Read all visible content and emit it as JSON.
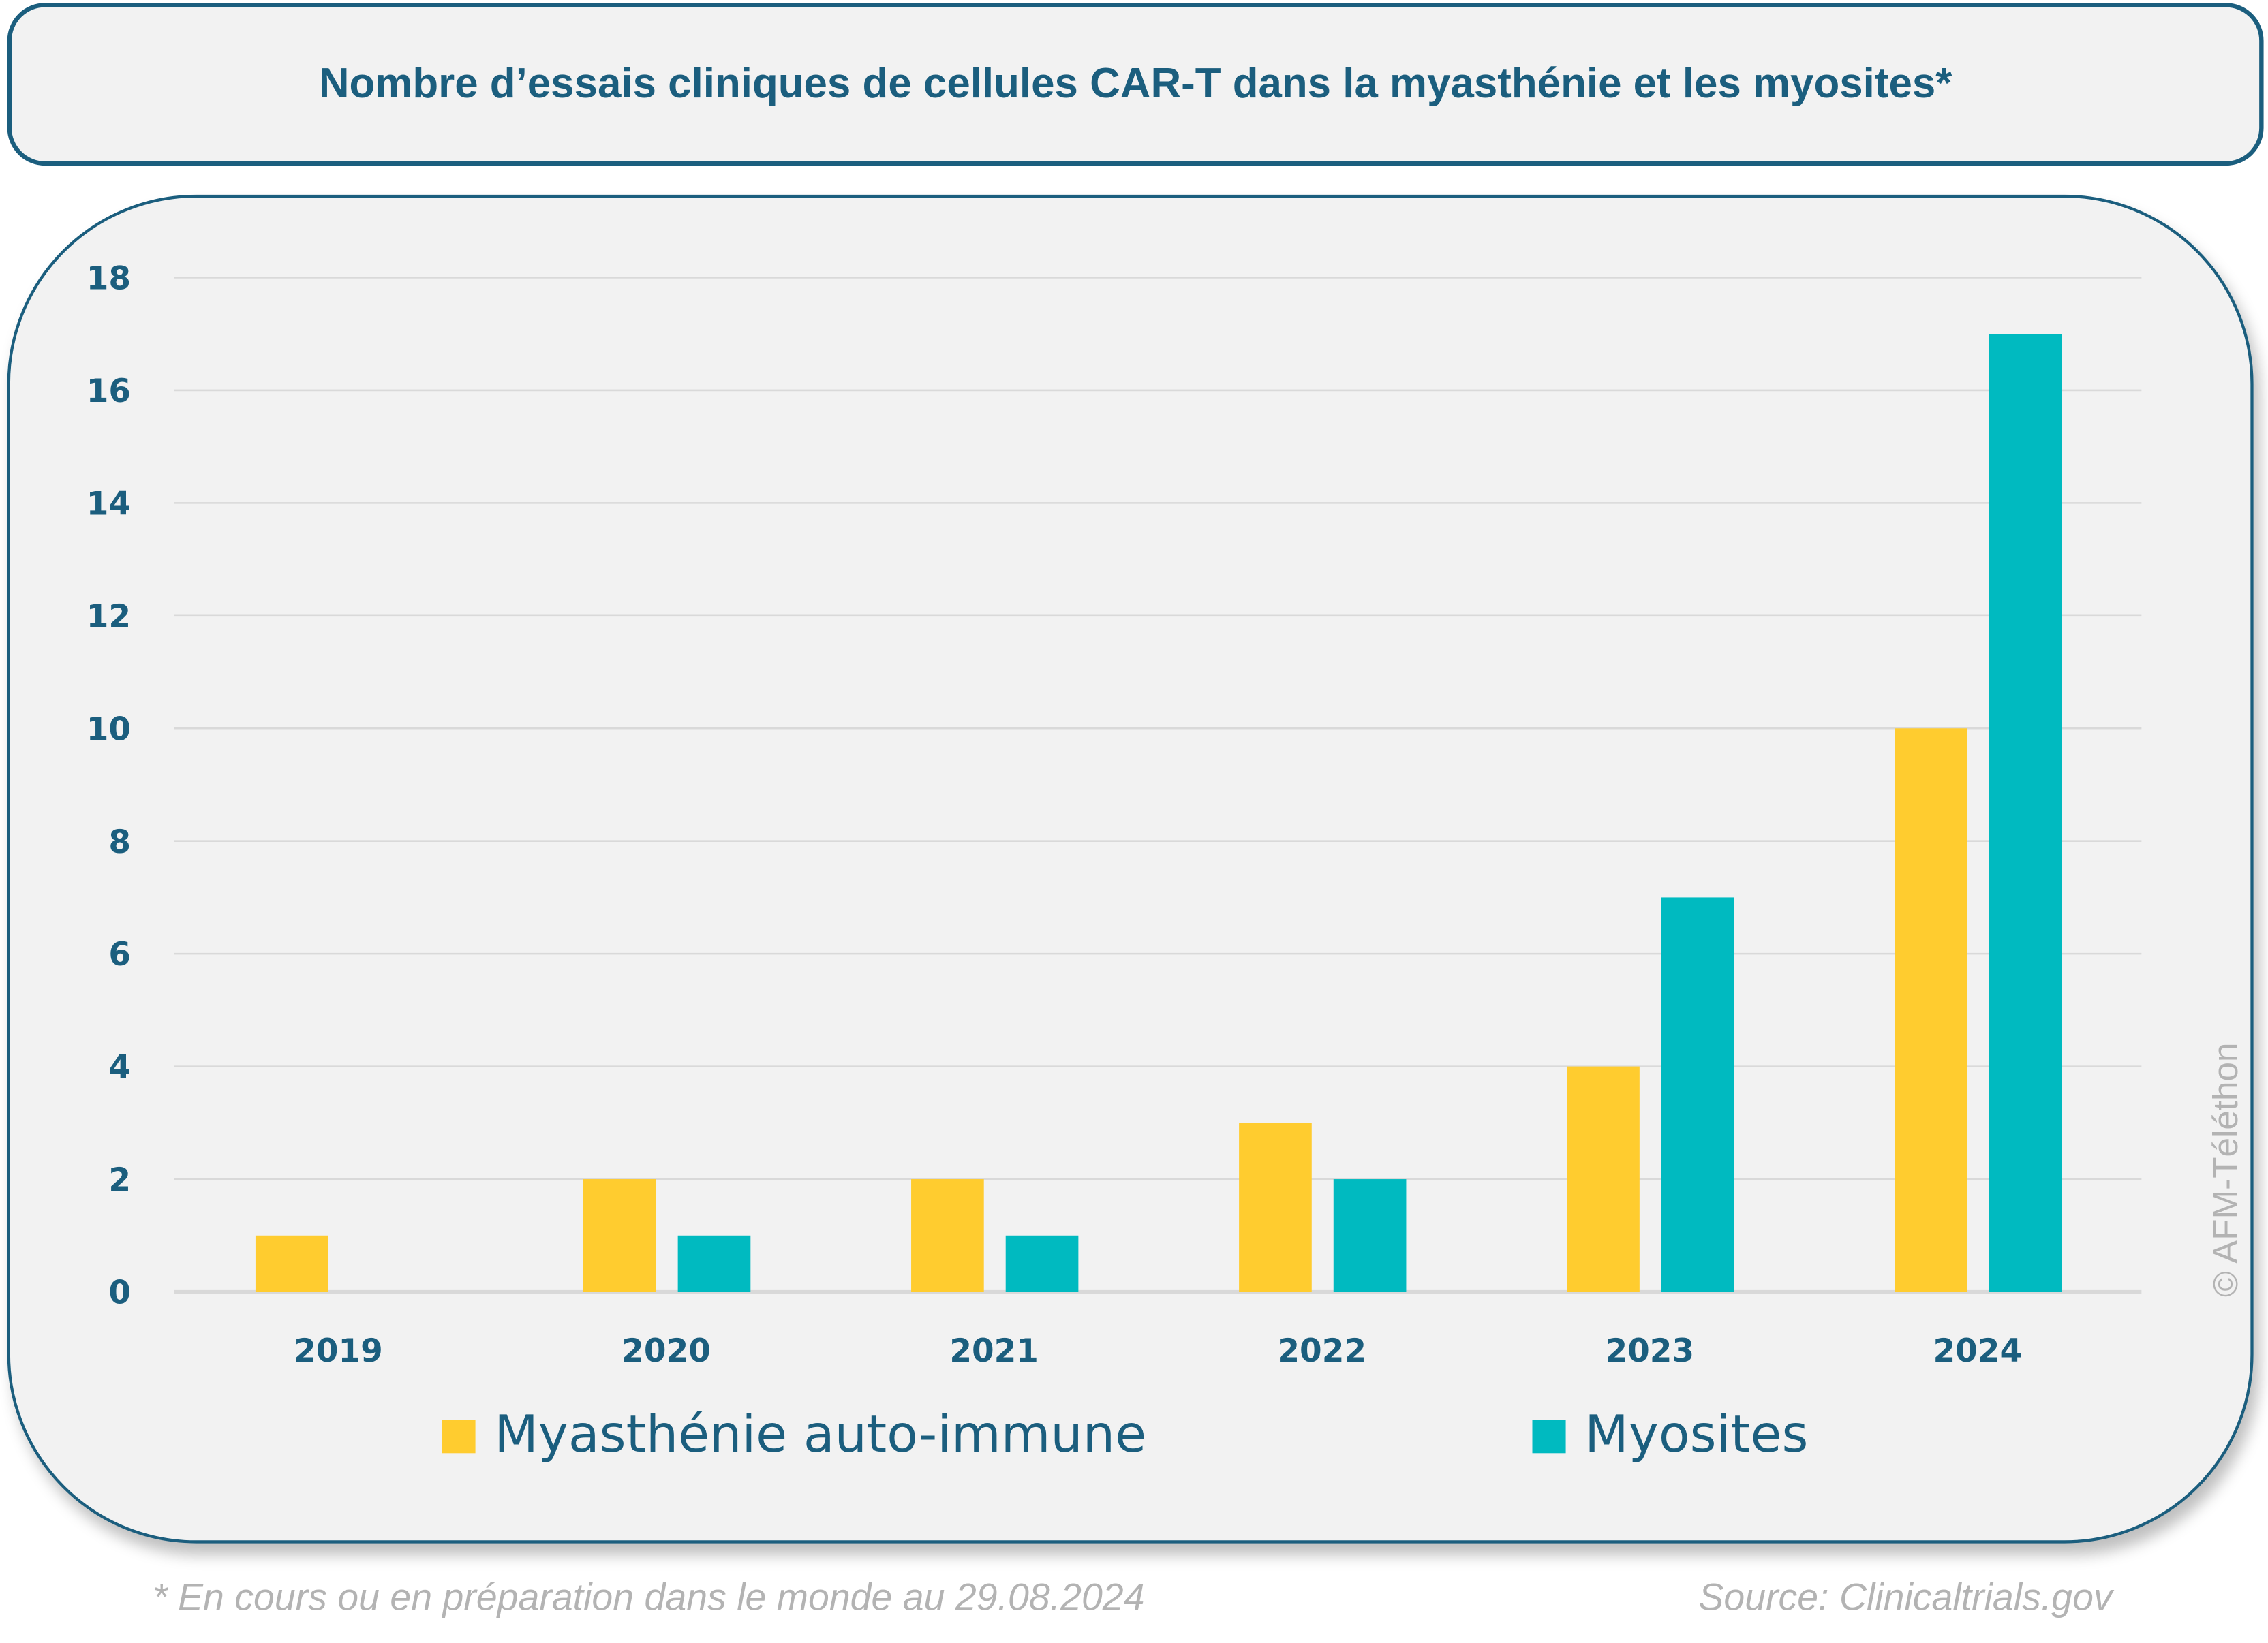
{
  "chart_data": {
    "type": "bar",
    "title": "Nombre d’essais cliniques de cellules CAR-T dans la myasthénie et les myosites*",
    "categories": [
      "2019",
      "2020",
      "2021",
      "2022",
      "2023",
      "2024"
    ],
    "series": [
      {
        "name": "Myasthénie auto-immune",
        "color": "#FFCC2F",
        "values": [
          1,
          2,
          2,
          3,
          4,
          10
        ]
      },
      {
        "name": "Myosites",
        "color": "#00BAC0",
        "values": [
          0,
          1,
          1,
          2,
          7,
          17
        ]
      }
    ],
    "ylim": [
      0,
      18
    ],
    "yticks": [
      "0",
      "2",
      "4",
      "6",
      "8",
      "10",
      "12",
      "14",
      "16",
      "18"
    ],
    "grid": true,
    "legend": "bottom"
  },
  "footnote": "* En cours ou en préparation dans le monde au 29.08.2024",
  "source": "Source: Clinicaltrials.gov",
  "watermark": "© AFM-Téléthon",
  "colors": {
    "text": "#1B5E7E",
    "background": "#F2F2F2"
  }
}
